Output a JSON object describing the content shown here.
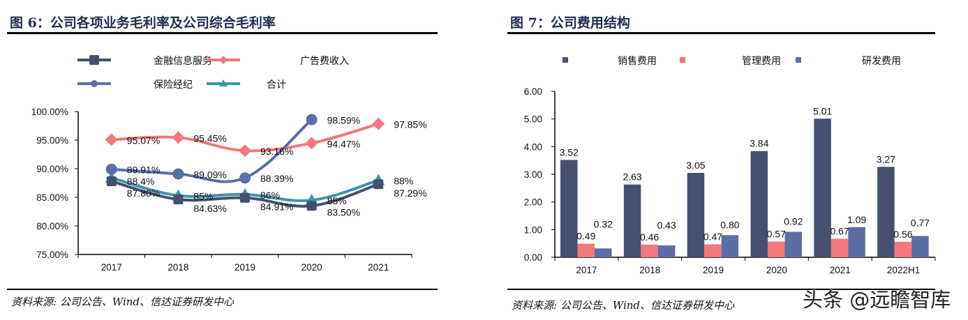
{
  "watermark": "头条 @远瞻智库",
  "chart_data": [
    {
      "type": "line",
      "title": "图 6：公司各项业务毛利率及公司综合毛利率",
      "source": "资料来源: 公司公告、Wind、信达证券研发中心",
      "categories": [
        "2017",
        "2018",
        "2019",
        "2020",
        "2021"
      ],
      "ylim": [
        75,
        100
      ],
      "yticks": [
        "75.00%",
        "80.00%",
        "85.00%",
        "90.00%",
        "95.00%",
        "100.00%"
      ],
      "legend_position": "top",
      "series": [
        {
          "name": "金融信息服务",
          "color": "#44506e",
          "marker": "square",
          "values": [
            87.8,
            84.63,
            84.91,
            83.5,
            87.29
          ],
          "labels": [
            "87.80%",
            "84.63%",
            "84.91%",
            "83.50%",
            "87.29%"
          ]
        },
        {
          "name": "广告费收入",
          "color": "#f4777a",
          "marker": "diamond",
          "values": [
            95.07,
            95.45,
            93.16,
            94.47,
            97.85
          ],
          "labels": [
            "95.07%",
            "95.45%",
            "93.16%",
            "94.47%",
            "97.85%"
          ]
        },
        {
          "name": "保险经纪",
          "color": "#5b6ea6",
          "marker": "circle",
          "values": [
            89.91,
            89.09,
            88.39,
            98.59,
            null
          ],
          "labels": [
            "89.91%",
            "89.09%",
            "88.39%",
            "98.59%",
            ""
          ]
        },
        {
          "name": "合计",
          "color": "#3c95ad",
          "marker": "triangle",
          "values": [
            88.4,
            85.3,
            85.5,
            84.5,
            88.0
          ],
          "labels": [
            "88.4%",
            "85%",
            "86%",
            "85%",
            "88%"
          ]
        }
      ]
    },
    {
      "type": "bar",
      "title": "图 7：公司费用结构",
      "source": "资料来源: 公司公告、Wind、信达证券研发中心",
      "categories": [
        "2017",
        "2018",
        "2019",
        "2020",
        "2021",
        "2022H1"
      ],
      "ylim": [
        0,
        6
      ],
      "yticks": [
        "0.00",
        "1.00",
        "2.00",
        "3.00",
        "4.00",
        "5.00",
        "6.00"
      ],
      "legend_position": "top",
      "series": [
        {
          "name": "销售费用",
          "color": "#44506e",
          "values": [
            3.52,
            2.63,
            3.05,
            3.84,
            5.01,
            3.27
          ],
          "labels": [
            "3.52",
            "2.63",
            "3.05",
            "3.84",
            "5.01",
            "3.27"
          ]
        },
        {
          "name": "管理费用",
          "color": "#f4777a",
          "values": [
            0.49,
            0.46,
            0.47,
            0.57,
            0.67,
            0.56
          ],
          "labels": [
            "0.49",
            "0.46",
            "0.47",
            "0.57",
            "0.67",
            "0.56"
          ]
        },
        {
          "name": "研发费用",
          "color": "#5b6ea6",
          "values": [
            0.32,
            0.43,
            0.8,
            0.92,
            1.09,
            0.77
          ],
          "labels": [
            "0.32",
            "0.43",
            "0.80",
            "0.92",
            "1.09",
            "0.77"
          ]
        }
      ]
    }
  ]
}
